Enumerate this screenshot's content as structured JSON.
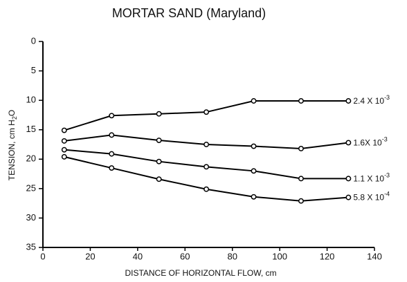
{
  "chart_data": {
    "type": "line",
    "title": "MORTAR SAND (Maryland)",
    "xlabel": "DISTANCE OF HORIZONTAL FLOW, cm",
    "ylabel": [
      "TENSION, cm H",
      "2",
      "O"
    ],
    "x": [
      9,
      29,
      49,
      69,
      89,
      109,
      129
    ],
    "xlim": [
      0,
      140
    ],
    "xticks": [
      0,
      20,
      40,
      60,
      80,
      100,
      120,
      140
    ],
    "ylim": [
      0,
      35
    ],
    "yticks": [
      0,
      5,
      10,
      15,
      20,
      25,
      30,
      35
    ],
    "y_inverted": true,
    "series": [
      {
        "name": "2.4 X 10",
        "exponent": "-3",
        "color": "#000000",
        "values": [
          15.1,
          12.6,
          12.3,
          12.0,
          10.1,
          10.1,
          10.1
        ]
      },
      {
        "name": "1.6X 10",
        "exponent": "-3",
        "color": "#000000",
        "values": [
          16.9,
          15.9,
          16.8,
          17.5,
          17.8,
          18.2,
          17.2
        ]
      },
      {
        "name": "1.1 X 10",
        "exponent": "-3",
        "color": "#000000",
        "values": [
          18.4,
          19.1,
          20.4,
          21.3,
          22.0,
          23.3,
          23.3
        ]
      },
      {
        "name": "5.8 X 10",
        "exponent": "-4",
        "color": "#000000",
        "values": [
          19.6,
          21.5,
          23.4,
          25.1,
          26.4,
          27.1,
          26.5
        ]
      }
    ]
  }
}
